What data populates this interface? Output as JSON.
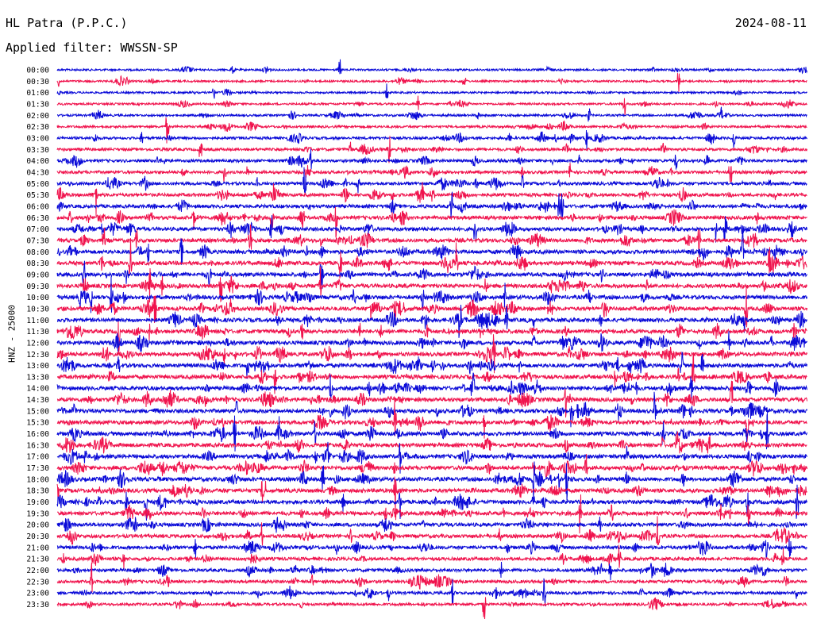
{
  "header": {
    "station": "HL Patra (P.P.C.)",
    "date": "2024-08-11",
    "filter": "Applied filter: WWSSN-SP"
  },
  "colors": {
    "odd_trace": "#0a0ad8",
    "even_trace": "#f0134d"
  },
  "chart_data": {
    "type": "line",
    "title": "HL Patra (P.P.C.)",
    "ylabel": "HNZ - 25000",
    "xlabel": "",
    "grid": false,
    "legend": "none",
    "trace_colors": [
      "#0a0ad8",
      "#f0134d"
    ],
    "row_labels": [
      "00:00",
      "00:30",
      "01:00",
      "01:30",
      "02:00",
      "02:30",
      "03:00",
      "03:30",
      "04:00",
      "04:30",
      "05:00",
      "05:30",
      "06:00",
      "06:30",
      "07:00",
      "07:30",
      "08:00",
      "08:30",
      "09:00",
      "09:30",
      "10:00",
      "10:30",
      "11:00",
      "11:30",
      "12:00",
      "12:30",
      "13:00",
      "13:30",
      "14:00",
      "14:30",
      "15:00",
      "15:30",
      "16:00",
      "16:30",
      "17:00",
      "17:30",
      "18:00",
      "18:30",
      "19:00",
      "19:30",
      "20:00",
      "20:30",
      "21:00",
      "21:30",
      "22:00",
      "22:30",
      "23:00",
      "23:30"
    ],
    "row_activity": [
      0.25,
      0.25,
      0.25,
      0.3,
      0.35,
      0.4,
      0.5,
      0.55,
      0.6,
      0.65,
      0.7,
      0.75,
      0.8,
      0.85,
      0.9,
      0.95,
      1.0,
      1.0,
      1.0,
      1.0,
      1.0,
      1.0,
      1.0,
      1.0,
      1.0,
      1.0,
      1.0,
      1.0,
      1.0,
      1.0,
      1.0,
      1.0,
      1.0,
      1.0,
      1.0,
      1.0,
      1.0,
      1.0,
      1.0,
      0.95,
      0.9,
      0.85,
      0.8,
      0.75,
      0.7,
      0.65,
      0.6,
      0.5
    ]
  }
}
